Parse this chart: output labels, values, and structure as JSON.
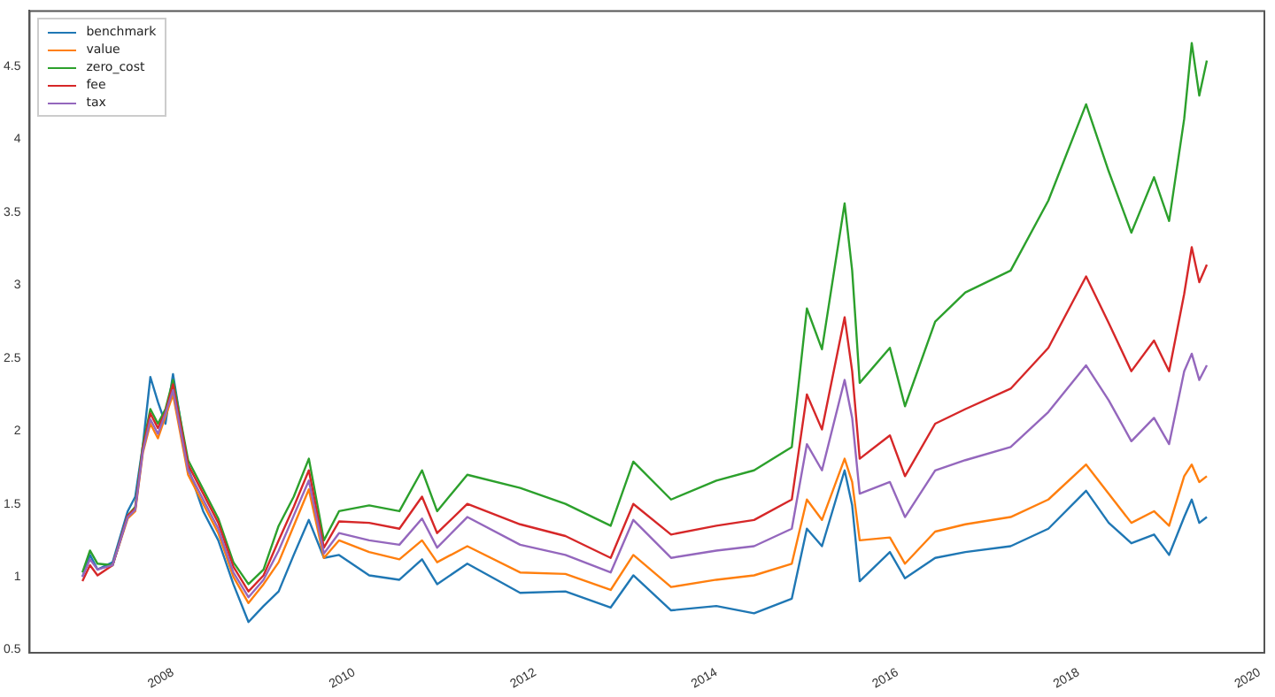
{
  "chart_data": {
    "type": "line",
    "x": [
      "2007-01",
      "2007-02",
      "2007-03",
      "2007-05",
      "2007-07",
      "2007-08",
      "2007-09",
      "2007-10",
      "2007-11",
      "2007-12",
      "2008-01",
      "2008-03",
      "2008-05",
      "2008-07",
      "2008-09",
      "2008-11",
      "2009-01",
      "2009-03",
      "2009-05",
      "2009-07",
      "2009-09",
      "2009-11",
      "2010-03",
      "2010-07",
      "2010-10",
      "2010-12",
      "2011-04",
      "2011-11",
      "2012-05",
      "2012-11",
      "2013-02",
      "2013-07",
      "2014-01",
      "2014-06",
      "2014-11",
      "2015-01",
      "2015-03",
      "2015-06",
      "2015-07",
      "2015-08",
      "2015-12",
      "2016-02",
      "2016-06",
      "2016-10",
      "2017-04",
      "2017-09",
      "2018-02",
      "2018-05",
      "2018-08",
      "2018-11",
      "2019-01",
      "2019-03",
      "2019-04",
      "2019-05",
      "2019-06"
    ],
    "series": [
      {
        "name": "benchmark",
        "color": "#1f77b4",
        "values": [
          1.0,
          1.15,
          1.05,
          1.1,
          1.45,
          1.55,
          1.9,
          2.37,
          2.2,
          2.05,
          2.39,
          1.75,
          1.45,
          1.25,
          0.95,
          0.69,
          0.8,
          0.9,
          1.15,
          1.39,
          1.13,
          1.15,
          1.01,
          0.98,
          1.12,
          0.95,
          1.09,
          0.89,
          0.9,
          0.79,
          1.01,
          0.77,
          0.8,
          0.75,
          0.85,
          1.33,
          1.21,
          1.73,
          1.49,
          0.97,
          1.17,
          0.99,
          1.13,
          1.17,
          1.21,
          1.33,
          1.59,
          1.37,
          1.23,
          1.29,
          1.15,
          1.41,
          1.53,
          1.37,
          1.41
        ]
      },
      {
        "name": "value",
        "color": "#ff7f0e",
        "values": [
          null,
          null,
          null,
          1.08,
          1.4,
          1.45,
          1.85,
          2.05,
          1.95,
          2.1,
          2.25,
          1.7,
          1.5,
          1.3,
          1.0,
          0.82,
          0.95,
          1.1,
          1.35,
          1.6,
          1.13,
          1.25,
          1.17,
          1.12,
          1.25,
          1.1,
          1.21,
          1.03,
          1.02,
          0.91,
          1.15,
          0.93,
          0.98,
          1.01,
          1.09,
          1.53,
          1.39,
          1.81,
          1.65,
          1.25,
          1.27,
          1.09,
          1.31,
          1.36,
          1.41,
          1.53,
          1.77,
          1.57,
          1.37,
          1.45,
          1.35,
          1.69,
          1.77,
          1.65,
          1.69
        ]
      },
      {
        "name": "zero_cost",
        "color": "#2ca02c",
        "values": [
          1.03,
          1.18,
          1.09,
          1.08,
          1.42,
          1.48,
          1.9,
          2.15,
          2.05,
          2.15,
          2.35,
          1.8,
          1.6,
          1.4,
          1.1,
          0.95,
          1.05,
          1.35,
          1.55,
          1.81,
          1.25,
          1.45,
          1.49,
          1.45,
          1.73,
          1.45,
          1.7,
          1.61,
          1.5,
          1.35,
          1.79,
          1.53,
          1.66,
          1.73,
          1.89,
          2.84,
          2.56,
          3.56,
          3.1,
          2.33,
          2.57,
          2.17,
          2.75,
          2.95,
          3.1,
          3.58,
          4.24,
          3.78,
          3.36,
          3.74,
          3.44,
          4.14,
          4.66,
          4.3,
          4.54
        ]
      },
      {
        "name": "fee",
        "color": "#d62728",
        "values": [
          0.97,
          1.08,
          1.01,
          1.08,
          1.42,
          1.47,
          1.88,
          2.12,
          2.02,
          2.13,
          2.32,
          1.77,
          1.57,
          1.37,
          1.07,
          0.9,
          1.01,
          1.25,
          1.48,
          1.73,
          1.2,
          1.38,
          1.37,
          1.33,
          1.55,
          1.3,
          1.5,
          1.36,
          1.28,
          1.13,
          1.5,
          1.29,
          1.35,
          1.39,
          1.53,
          2.25,
          2.01,
          2.78,
          2.41,
          1.81,
          1.97,
          1.69,
          2.05,
          2.15,
          2.29,
          2.57,
          3.06,
          2.74,
          2.41,
          2.62,
          2.41,
          2.94,
          3.26,
          3.02,
          3.14
        ]
      },
      {
        "name": "tax",
        "color": "#9467bd",
        "values": [
          1.0,
          1.12,
          1.05,
          1.08,
          1.41,
          1.46,
          1.86,
          2.08,
          1.98,
          2.12,
          2.28,
          1.73,
          1.53,
          1.33,
          1.03,
          0.86,
          0.98,
          1.18,
          1.42,
          1.66,
          1.16,
          1.3,
          1.25,
          1.22,
          1.4,
          1.2,
          1.41,
          1.22,
          1.15,
          1.03,
          1.39,
          1.13,
          1.18,
          1.21,
          1.33,
          1.91,
          1.73,
          2.35,
          2.09,
          1.57,
          1.65,
          1.41,
          1.73,
          1.8,
          1.89,
          2.13,
          2.45,
          2.21,
          1.93,
          2.09,
          1.91,
          2.41,
          2.53,
          2.35,
          2.45
        ]
      }
    ],
    "xlim": [
      "2006-06",
      "2020-01-20"
    ],
    "xticks": [
      "2008",
      "2010",
      "2012",
      "2014",
      "2016",
      "2018",
      "2020"
    ],
    "ylim": [
      0.48,
      4.88
    ],
    "yticks": [
      0.5,
      1.0,
      1.5,
      2.0,
      2.5,
      3.0,
      3.5,
      4.0,
      4.5
    ],
    "legend": "top left",
    "grid": false,
    "marker": "none",
    "line_style": "solid"
  }
}
